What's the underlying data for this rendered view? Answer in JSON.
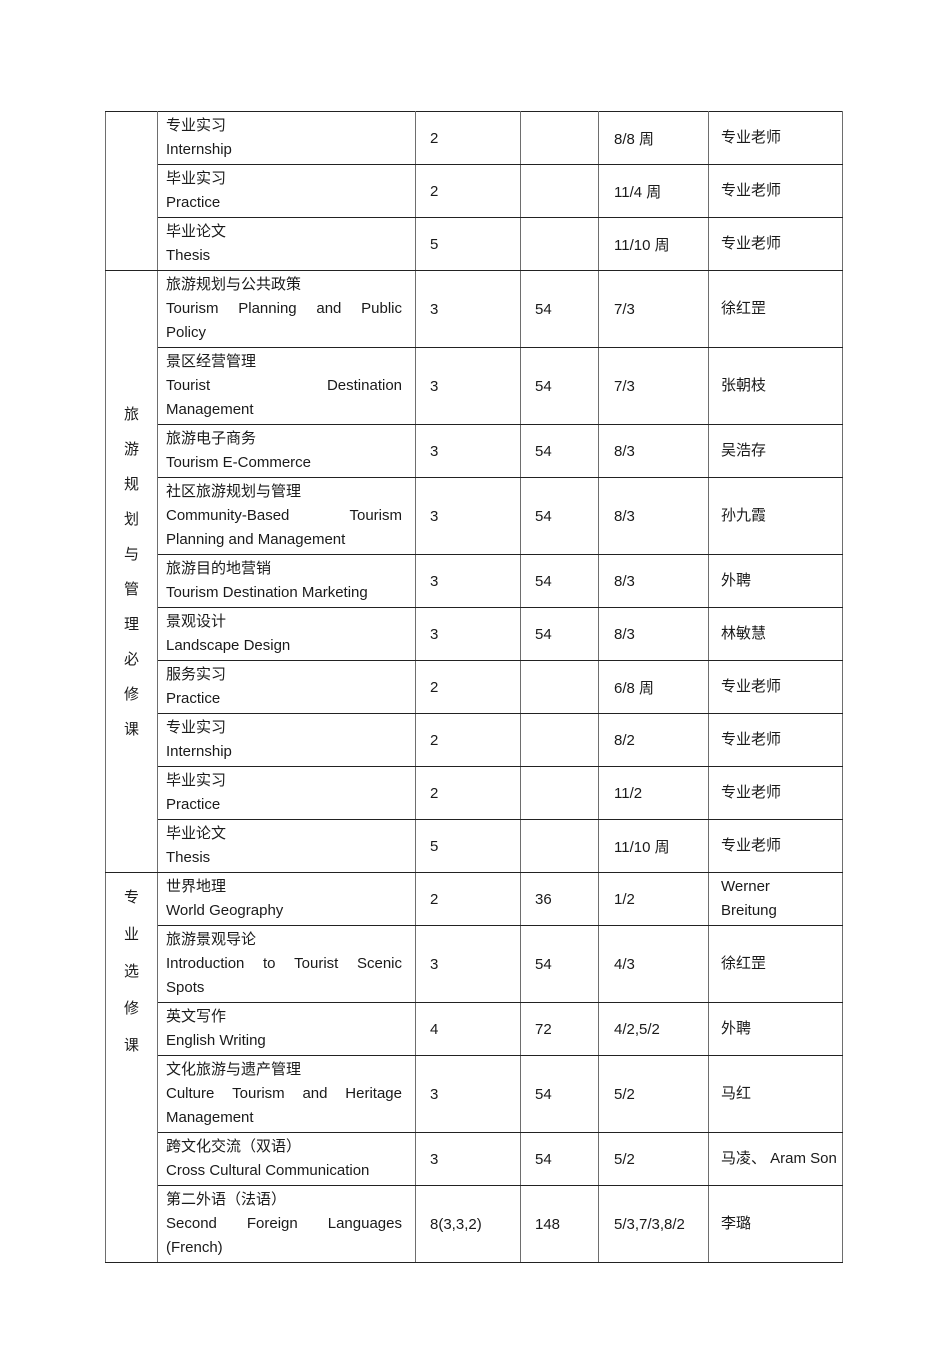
{
  "page": {
    "background": "#ffffff",
    "text_color": "#1a1a1a",
    "border_color_horizontal": "#222222",
    "border_color_vertical": "#6e6e6e"
  },
  "table": {
    "sections": [
      {
        "category": "",
        "rows": [
          {
            "name_lines": [
              {
                "t": "专业实习"
              },
              {
                "t": "Internship"
              }
            ],
            "credits": "2",
            "hours": "",
            "schedule": "8/8 周",
            "teacher_lines": [
              "专业老师"
            ]
          },
          {
            "name_lines": [
              {
                "t": "毕业实习"
              },
              {
                "t": "Practice"
              }
            ],
            "credits": "2",
            "hours": "",
            "schedule": "11/4 周",
            "teacher_lines": [
              "专业老师"
            ]
          },
          {
            "name_lines": [
              {
                "t": "毕业论文"
              },
              {
                "t": "Thesis"
              }
            ],
            "credits": "5",
            "hours": "",
            "schedule": "11/10 周",
            "teacher_lines": [
              "专业老师"
            ]
          }
        ]
      },
      {
        "category": "旅游规划与管理必修课",
        "rows": [
          {
            "name_lines": [
              {
                "t": "旅游规划与公共政策"
              },
              {
                "t": "Tourism Planning and Public",
                "j": true
              },
              {
                "t": "Policy"
              }
            ],
            "credits": "3",
            "hours": "54",
            "schedule": "7/3",
            "teacher_lines": [
              "徐红罡"
            ]
          },
          {
            "name_lines": [
              {
                "t": "景区经营管理"
              },
              {
                "t": "Tourist Destination",
                "j": true
              },
              {
                "t": "Management"
              }
            ],
            "credits": "3",
            "hours": "54",
            "schedule": "7/3",
            "teacher_lines": [
              "张朝枝"
            ]
          },
          {
            "name_lines": [
              {
                "t": "旅游电子商务"
              },
              {
                "t": "Tourism E-Commerce"
              }
            ],
            "credits": "3",
            "hours": "54",
            "schedule": "8/3",
            "teacher_lines": [
              "吴浩存"
            ]
          },
          {
            "name_lines": [
              {
                "t": "社区旅游规划与管理"
              },
              {
                "t": "Community-Based Tourism",
                "j": true
              },
              {
                "t": "Planning and Management"
              }
            ],
            "credits": "3",
            "hours": "54",
            "schedule": "8/3",
            "teacher_lines": [
              "孙九霞"
            ]
          },
          {
            "name_lines": [
              {
                "t": "旅游目的地营销"
              },
              {
                "t": "Tourism Destination Marketing"
              }
            ],
            "credits": "3",
            "hours": "54",
            "schedule": "8/3",
            "teacher_lines": [
              "外聘"
            ]
          },
          {
            "name_lines": [
              {
                "t": "景观设计"
              },
              {
                "t": "Landscape Design"
              }
            ],
            "credits": "3",
            "hours": "54",
            "schedule": "8/3",
            "teacher_lines": [
              "林敏慧"
            ]
          },
          {
            "name_lines": [
              {
                "t": "服务实习"
              },
              {
                "t": "Practice"
              }
            ],
            "credits": "2",
            "hours": "",
            "schedule": "6/8 周",
            "teacher_lines": [
              "专业老师"
            ]
          },
          {
            "name_lines": [
              {
                "t": "专业实习"
              },
              {
                "t": "Internship"
              }
            ],
            "credits": "2",
            "hours": "",
            "schedule": "8/2",
            "teacher_lines": [
              "专业老师"
            ]
          },
          {
            "name_lines": [
              {
                "t": "毕业实习"
              },
              {
                "t": "Practice"
              }
            ],
            "credits": "2",
            "hours": "",
            "schedule": "11/2",
            "teacher_lines": [
              "专业老师"
            ]
          },
          {
            "name_lines": [
              {
                "t": "毕业论文"
              },
              {
                "t": "Thesis"
              }
            ],
            "credits": "5",
            "hours": "",
            "schedule": "11/10 周",
            "teacher_lines": [
              "专业老师"
            ]
          }
        ]
      },
      {
        "category": "专业选修课",
        "rows": [
          {
            "name_lines": [
              {
                "t": "世界地理"
              },
              {
                "t": "World Geography"
              }
            ],
            "credits": "2",
            "hours": "36",
            "schedule": "1/2",
            "teacher_lines": [
              "Werner",
              "Breitung"
            ]
          },
          {
            "name_lines": [
              {
                "t": "旅游景观导论"
              },
              {
                "t": "Introduction to Tourist Scenic",
                "j": true
              },
              {
                "t": "Spots"
              }
            ],
            "credits": "3",
            "hours": "54",
            "schedule": "4/3",
            "teacher_lines": [
              "徐红罡"
            ]
          },
          {
            "name_lines": [
              {
                "t": "英文写作"
              },
              {
                "t": "English Writing"
              }
            ],
            "credits": "4",
            "hours": "72",
            "schedule": "4/2,5/2",
            "teacher_lines": [
              "外聘"
            ]
          },
          {
            "name_lines": [
              {
                "t": "文化旅游与遗产管理"
              },
              {
                "t": "Culture Tourism and Heritage",
                "j": true
              },
              {
                "t": "Management"
              }
            ],
            "credits": "3",
            "hours": "54",
            "schedule": "5/2",
            "teacher_lines": [
              "马红"
            ]
          },
          {
            "name_lines": [
              {
                "t": "跨文化交流（双语）"
              },
              {
                "t": "Cross Cultural Communication"
              }
            ],
            "credits": "3",
            "hours": "54",
            "schedule": "5/2",
            "teacher_lines": [
              "马凌、 Aram Son"
            ]
          },
          {
            "name_lines": [
              {
                "t": "第二外语（法语）"
              },
              {
                "t": "Second Foreign Languages",
                "j": true
              },
              {
                "t": "(French)"
              }
            ],
            "credits": "8(3,3,2)",
            "hours": "148",
            "schedule": "5/3,7/3,8/2",
            "teacher_lines": [
              "李璐"
            ]
          }
        ]
      }
    ]
  }
}
